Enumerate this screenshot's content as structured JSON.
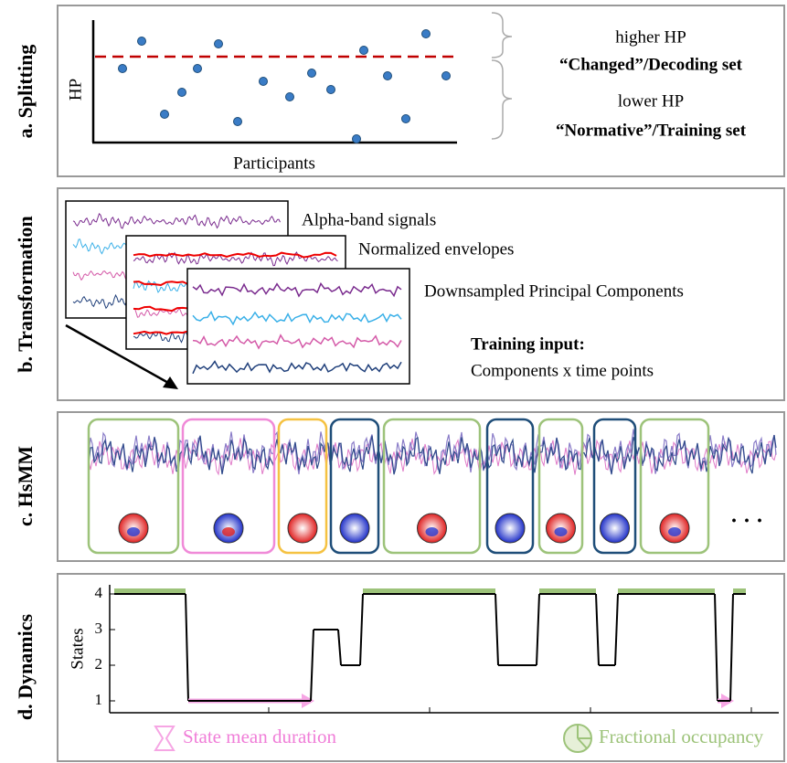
{
  "panels": [
    {
      "label": "a. Splitting",
      "y_label": "HP",
      "x_label": "Participants",
      "upper": {
        "title": "higher HP",
        "set": "“Changed”/Decoding set"
      },
      "lower": {
        "title": "lower HP",
        "set": "“Normative”/Training set"
      }
    },
    {
      "label": "b. Transformation",
      "steps": [
        "Alpha-band signals",
        "Normalized envelopes",
        "Downsampled Principal Components"
      ],
      "input_title": "Training input:",
      "input_text": "Components x time points"
    },
    {
      "label": "c. HsMM",
      "more": "· · ·"
    },
    {
      "label": "d. Dynamics",
      "y_label": "States",
      "yticks": [
        1,
        2,
        3,
        4
      ],
      "states": [
        4,
        1,
        3,
        2,
        4,
        2,
        4,
        2,
        4,
        1,
        4
      ],
      "legend": [
        "State mean  duration",
        "Fractional occupancy"
      ]
    }
  ]
}
